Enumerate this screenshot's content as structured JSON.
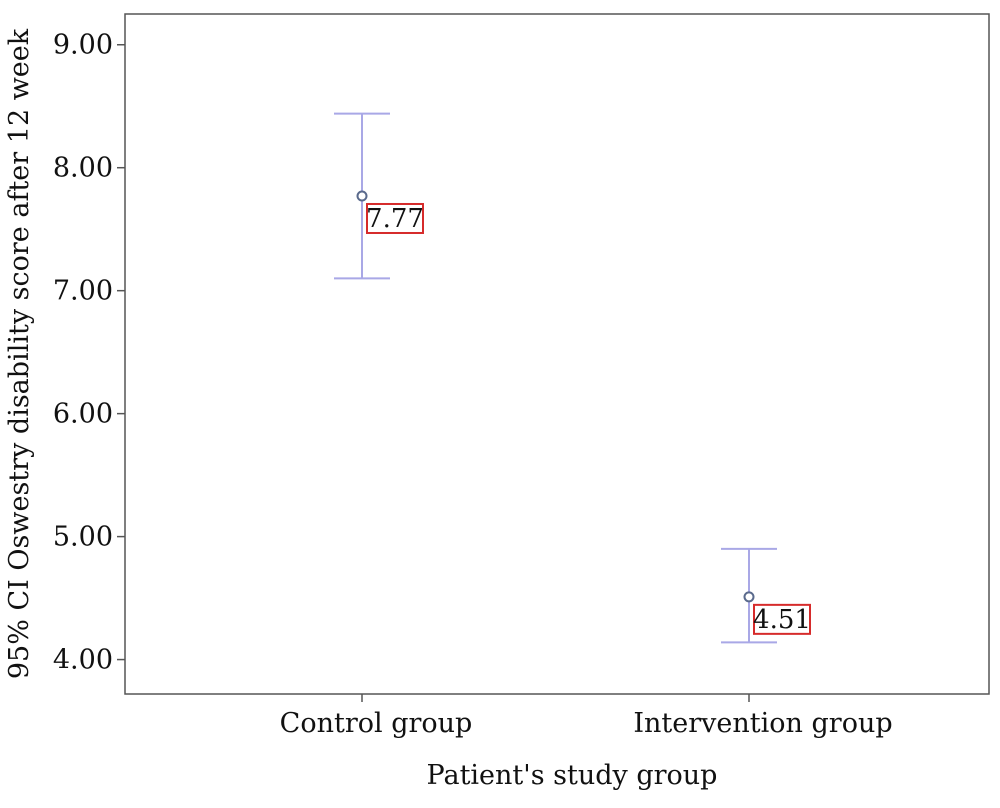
{
  "chart_data": {
    "type": "errorbar",
    "categories": [
      "Control group",
      "Intervention group"
    ],
    "series": [
      {
        "mean": [
          7.77,
          4.51
        ],
        "ci_lower": [
          7.1,
          4.14
        ],
        "ci_upper": [
          8.44,
          4.9
        ],
        "data_labels": [
          "7.77",
          "4.51"
        ]
      }
    ],
    "xlabel": "Patient's study group",
    "ylabel": "95% CI Oswestry disability score after 12 week",
    "ylim": [
      3.72,
      9.25
    ],
    "yticks": [
      9.0,
      8.0,
      7.0,
      6.0,
      5.0,
      4.0
    ],
    "ytick_labels": [
      "9.00",
      "8.00",
      "7.00",
      "6.00",
      "5.00",
      "4.00"
    ],
    "grid": false,
    "colors": {
      "errorbar": "#a9a8e6",
      "marker": "#5a6a8c",
      "label_border": "#d62b2b",
      "axis": "#555555"
    }
  }
}
